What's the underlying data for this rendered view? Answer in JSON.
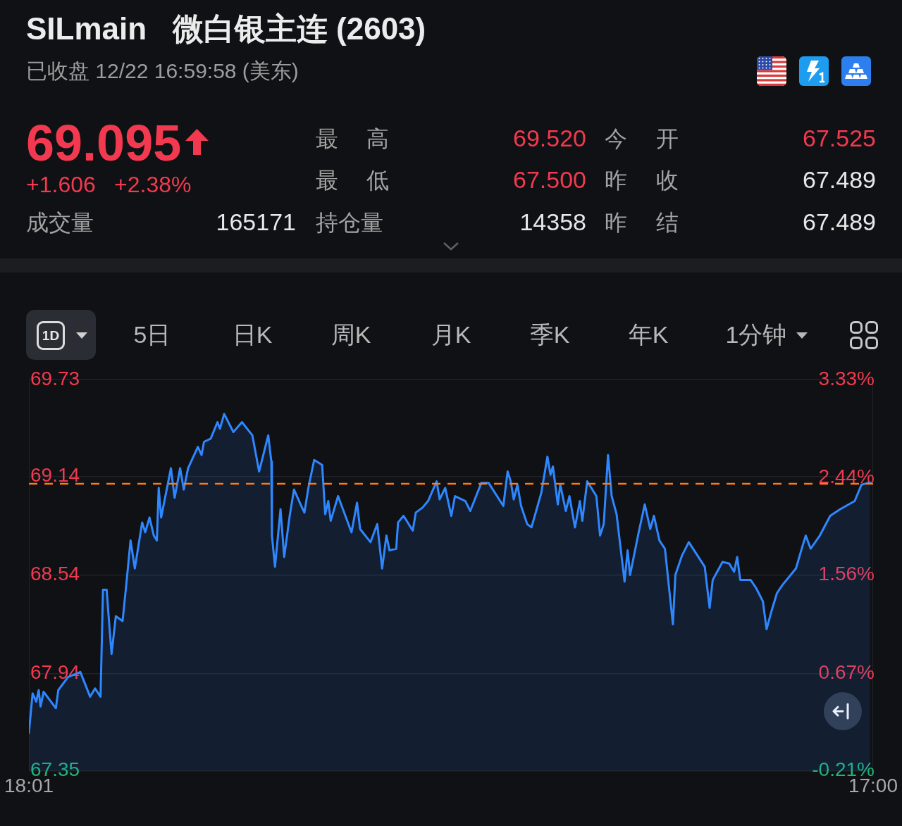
{
  "chart_data": {
    "type": "area",
    "title": "SILmain   微白银主连 (2603)",
    "subtitle": "已收盘 12/22 16:59:58 (美东)",
    "annotations": [
      "69.095",
      "+1.606",
      "+2.38%",
      "成交量",
      "165171",
      "最高",
      "69.520",
      "最低",
      "67.500",
      "持仓量",
      "14358",
      "今开",
      "67.525",
      "昨收",
      "67.489",
      "昨结",
      "67.489",
      "1D",
      "5日",
      "日K",
      "周K",
      "月K",
      "季K",
      "年K",
      "1分钟"
    ],
    "x": [
      "--12-21T18:01",
      "--12-21T18:07",
      "--12-21T18:13",
      "--12-21T18:17",
      "--12-21T18:20",
      "--12-21T18:25",
      "--12-21T18:45",
      "--12-21T18:49",
      "--12-21T19:05",
      "--12-21T19:25",
      "--12-21T19:41",
      "--12-21T19:49",
      "--12-21T19:58",
      "--12-21T20:02",
      "--12-21T20:08",
      "--12-21T20:11",
      "--12-21T20:16",
      "--12-21T20:23",
      "--12-21T20:34",
      "--12-21T20:40",
      "--12-21T20:47",
      "--12-21T20:54",
      "--12-21T21:06",
      "--12-21T21:11",
      "--12-21T21:18",
      "--12-21T21:25",
      "--12-21T21:30",
      "--12-21T21:33",
      "--12-21T21:37",
      "--12-21T21:53",
      "--12-21T21:59",
      "--12-21T22:08",
      "--12-21T22:14",
      "--12-21T22:21",
      "--12-21T22:37",
      "--12-21T22:43",
      "--12-21T22:47",
      "--12-21T22:58",
      "--12-21T23:09",
      "--12-21T23:13",
      "--12-21T23:20",
      "--12-21T23:35",
      "--12-21T23:49",
      "--12-22T00:06",
      "--12-22T00:17",
      "--12-22T00:32",
      "--12-22T00:37",
      "--12-22T00:38",
      "--12-22T00:43",
      "--12-22T00:52",
      "--12-22T00:58",
      "--12-22T01:07",
      "--12-22T01:14",
      "--12-22T01:26",
      "--12-22T01:31",
      "--12-22T01:38",
      "--12-22T01:47",
      "--12-22T02:00",
      "--12-22T02:05",
      "--12-22T02:10",
      "--12-22T02:14",
      "--12-22T02:26",
      "--12-22T02:48",
      "--12-22T02:57",
      "--12-22T03:02",
      "--12-22T03:19",
      "--12-22T03:30",
      "--12-22T03:38",
      "--12-22T03:45",
      "--12-22T03:50",
      "--12-22T04:01",
      "--12-22T04:04",
      "--12-22T04:13",
      "--12-22T04:28",
      "--12-22T04:33",
      "--12-22T04:44",
      "--12-22T04:53",
      "--12-22T05:07",
      "--12-22T05:12",
      "--12-22T05:21",
      "--12-22T05:31",
      "--12-22T05:37",
      "--12-22T05:54",
      "--12-22T06:02",
      "--12-22T06:20",
      "--12-22T06:32",
      "--12-22T06:56",
      "--12-22T07:03",
      "--12-22T07:08",
      "--12-22T07:13",
      "--12-22T07:19",
      "--12-22T07:25",
      "--12-22T07:35",
      "--12-22T07:42",
      "--12-22T07:58",
      "--12-22T08:08",
      "--12-22T08:13",
      "--12-22T08:17",
      "--12-22T08:25",
      "--12-22T08:29",
      "--12-22T08:38",
      "--12-22T08:44",
      "--12-22T08:53",
      "--12-22T09:01",
      "--12-22T09:05",
      "--12-22T09:13",
      "--12-22T09:28",
      "--12-22T09:34",
      "--12-22T09:40",
      "--12-22T09:47",
      "--12-22T09:53",
      "--12-22T10:01",
      "--12-22T10:14",
      "--12-22T10:19",
      "--12-22T10:23",
      "--12-22T10:36",
      "--12-22T10:47",
      "--12-22T10:56",
      "--12-22T11:02",
      "--12-22T11:11",
      "--12-22T11:20",
      "--12-22T11:33",
      "--12-22T11:37",
      "--12-22T11:48",
      "--12-22T11:59",
      "--12-22T12:25",
      "--12-22T12:33",
      "--12-22T12:38",
      "--12-22T12:54",
      "--12-22T13:05",
      "--12-22T13:13",
      "--12-22T13:18",
      "--12-22T13:23",
      "--12-22T13:40",
      "--12-22T13:49",
      "--12-22T14:00",
      "--12-22T14:06",
      "--12-22T14:14",
      "--12-22T14:23",
      "--12-22T14:32",
      "--12-22T14:54",
      "--12-22T15:05",
      "--12-22T15:10",
      "--12-22T15:18",
      "--12-22T15:33",
      "--12-22T15:50",
      "--12-22T16:06",
      "--12-22T16:30",
      "--12-22T16:41",
      "--12-22T16:52",
      "--12-22T16:55"
    ],
    "series": [
      {
        "type": "area",
        "color": "#2f87ff",
        "values": [
          67.58,
          67.82,
          67.77,
          67.84,
          67.74,
          67.83,
          67.73,
          67.84,
          67.92,
          67.95,
          67.8,
          67.85,
          67.8,
          68.45,
          68.45,
          68.3,
          68.06,
          68.29,
          68.26,
          68.48,
          68.75,
          68.58,
          68.86,
          68.8,
          68.89,
          68.78,
          68.75,
          69.07,
          68.89,
          69.19,
          69.01,
          69.19,
          69.06,
          69.19,
          69.32,
          69.27,
          69.35,
          69.37,
          69.47,
          69.43,
          69.52,
          69.41,
          69.47,
          69.39,
          69.17,
          69.39,
          69.23,
          68.78,
          68.59,
          68.94,
          68.65,
          68.9,
          69.06,
          68.96,
          68.92,
          69.08,
          69.24,
          69.21,
          68.91,
          68.99,
          68.87,
          69.02,
          68.8,
          68.98,
          68.82,
          68.74,
          68.85,
          68.58,
          68.78,
          68.69,
          68.7,
          68.86,
          68.9,
          68.81,
          68.92,
          68.95,
          68.99,
          69.11,
          69.0,
          69.07,
          68.9,
          69.02,
          68.99,
          68.93,
          69.1,
          69.1,
          68.96,
          69.17,
          69.11,
          69.0,
          69.09,
          68.96,
          68.85,
          68.83,
          69.04,
          69.26,
          69.15,
          69.2,
          68.97,
          69.09,
          68.93,
          69.02,
          68.83,
          68.99,
          68.87,
          69.11,
          69.02,
          68.78,
          68.85,
          69.27,
          69.02,
          68.91,
          68.5,
          68.69,
          68.54,
          68.78,
          68.97,
          68.82,
          68.9,
          68.75,
          68.7,
          68.24,
          68.54,
          68.66,
          68.74,
          68.59,
          68.34,
          68.51,
          68.62,
          68.61,
          68.56,
          68.65,
          68.51,
          68.51,
          68.46,
          68.38,
          68.21,
          68.32,
          68.43,
          68.48,
          68.58,
          68.72,
          68.78,
          68.7,
          68.78,
          68.9,
          68.94,
          68.99,
          69.09,
          69.1,
          69.1
        ]
      }
    ],
    "xlim": [
      "--12-21T18:01",
      "--12-22T17:00"
    ],
    "xticks": [
      {
        "value": "--12-21T18:01",
        "label": "18:01"
      },
      {
        "value": "--12-22T17:00",
        "label": "17:00"
      }
    ],
    "ylim": [
      67.35,
      69.73
    ],
    "yticks": [
      67.35,
      67.94,
      68.54,
      69.14,
      69.73
    ],
    "y2lim": [
      -0.21,
      3.33
    ],
    "y2ticks": [
      {
        "value": -0.21,
        "label": "-0.21%"
      },
      {
        "value": 0.67,
        "label": "0.67%"
      },
      {
        "value": 1.56,
        "label": "1.56%"
      },
      {
        "value": 2.44,
        "label": "2.44%"
      },
      {
        "value": 3.33,
        "label": "3.33%"
      }
    ],
    "ref_lines": [
      {
        "axis": "y",
        "value": 69.095,
        "color": "#ff7a0f",
        "line_style": "dashed"
      }
    ],
    "grid": "y"
  }
}
